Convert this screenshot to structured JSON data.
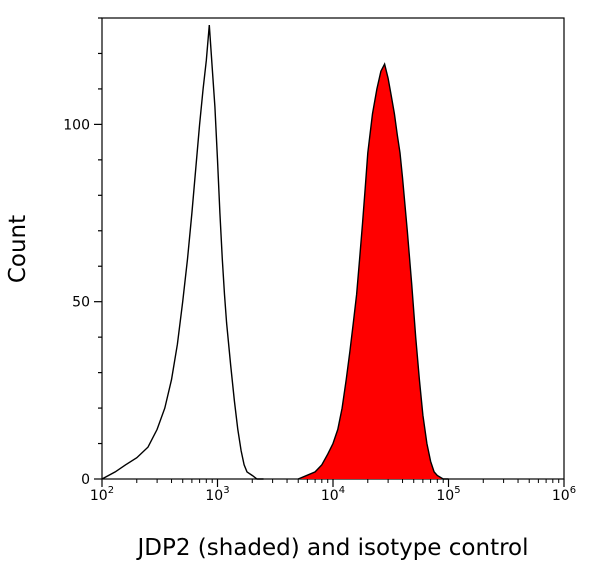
{
  "chart_data": {
    "type": "area",
    "title": "",
    "xlabel": "JDP2 (shaded) and isotype control",
    "ylabel": "Count",
    "x_scale": "log",
    "xlim": [
      100,
      1000000
    ],
    "ylim": [
      0,
      130
    ],
    "x_ticks": [
      {
        "value": 100,
        "base": "10",
        "exp": "2"
      },
      {
        "value": 1000,
        "base": "10",
        "exp": "3"
      },
      {
        "value": 10000,
        "base": "10",
        "exp": "4"
      },
      {
        "value": 100000,
        "base": "10",
        "exp": "5"
      },
      {
        "value": 1000000,
        "base": "10",
        "exp": "6"
      }
    ],
    "y_ticks": [
      0,
      50,
      100
    ],
    "grid": false,
    "legend": "none",
    "series": [
      {
        "role": "isotype control",
        "style": "outline",
        "color": "#000000",
        "x": [
          100,
          130,
          160,
          200,
          250,
          300,
          350,
          400,
          450,
          500,
          550,
          600,
          650,
          700,
          750,
          800,
          850,
          900,
          950,
          1000,
          1050,
          1100,
          1150,
          1200,
          1300,
          1400,
          1500,
          1600,
          1700,
          1800,
          2000,
          2200,
          2500
        ],
        "y": [
          0,
          2,
          4,
          6,
          9,
          14,
          20,
          28,
          38,
          50,
          62,
          75,
          88,
          100,
          110,
          118,
          128,
          116,
          105,
          90,
          75,
          62,
          52,
          44,
          32,
          22,
          14,
          8,
          4,
          2,
          1,
          0,
          0
        ]
      },
      {
        "role": "JDP2",
        "style": "shaded",
        "color": "#ff0000",
        "x": [
          5000,
          7000,
          8000,
          9000,
          10000,
          11000,
          12000,
          13000,
          14000,
          15000,
          16000,
          17000,
          18000,
          19000,
          20000,
          22000,
          24000,
          26000,
          28000,
          30000,
          32000,
          34000,
          36000,
          38000,
          40000,
          44000,
          48000,
          52000,
          56000,
          60000,
          65000,
          70000,
          75000,
          80000,
          90000,
          100000
        ],
        "y": [
          0,
          2,
          4,
          7,
          10,
          14,
          20,
          28,
          36,
          44,
          52,
          62,
          72,
          82,
          92,
          103,
          110,
          115,
          117,
          113,
          108,
          103,
          97,
          92,
          85,
          70,
          55,
          40,
          28,
          18,
          10,
          5,
          2,
          1,
          0,
          0
        ]
      }
    ]
  },
  "colors": {
    "shaded_fill": "#ff0000",
    "line": "#000000",
    "background": "#ffffff"
  }
}
